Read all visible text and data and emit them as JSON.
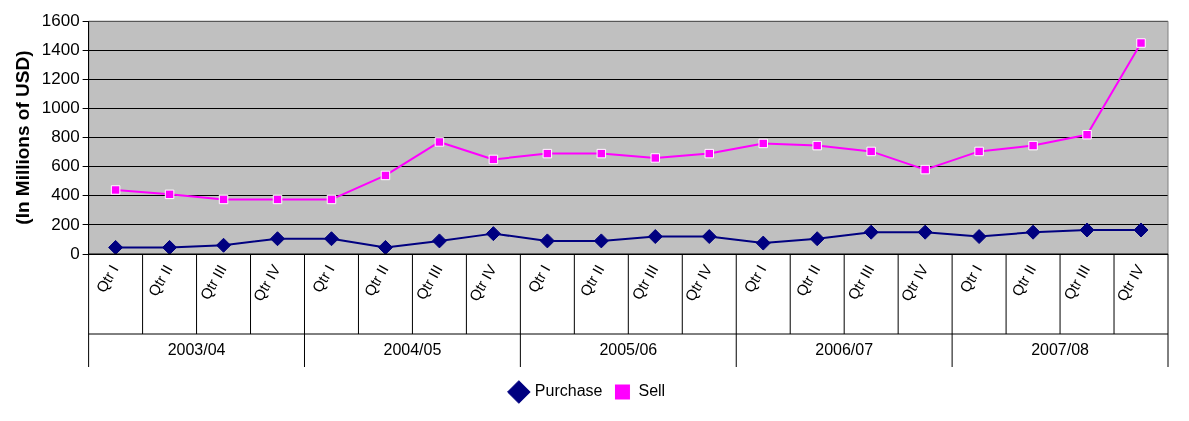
{
  "chart_data": {
    "type": "line",
    "ylabel": "(In Millions of USD)",
    "categories": [
      "Qtr I",
      "Qtr II",
      "Qtr III",
      "Qtr IV",
      "Qtr I",
      "Qtr II",
      "Qtr III",
      "Qtr IV",
      "Qtr I",
      "Qtr II",
      "Qtr III",
      "Qtr IV",
      "Qtr I",
      "Qtr II",
      "Qtr III",
      "Qtr IV",
      "Qtr I",
      "Qtr II",
      "Qtr III",
      "Qtr IV"
    ],
    "annotations": [
      "2003/04",
      "2004/05",
      "2005/06",
      "2006/07",
      "2007/08"
    ],
    "series": [
      {
        "name": "Purchase",
        "color": "#000080",
        "marker": "diamond",
        "values": [
          45,
          45,
          60,
          105,
          105,
          45,
          90,
          140,
          90,
          90,
          120,
          120,
          75,
          105,
          150,
          150,
          120,
          150,
          165,
          165
        ]
      },
      {
        "name": "Sell",
        "color": "#ff00ff",
        "marker": "square",
        "values": [
          440,
          410,
          375,
          375,
          375,
          540,
          770,
          650,
          690,
          690,
          660,
          690,
          760,
          745,
          705,
          580,
          705,
          745,
          820,
          1450
        ]
      }
    ],
    "ylim": [
      0,
      1600
    ],
    "yticks": [
      0,
      200,
      400,
      600,
      800,
      1000,
      1200,
      1400,
      1600
    ],
    "grid": "y",
    "legend": "bottom"
  }
}
